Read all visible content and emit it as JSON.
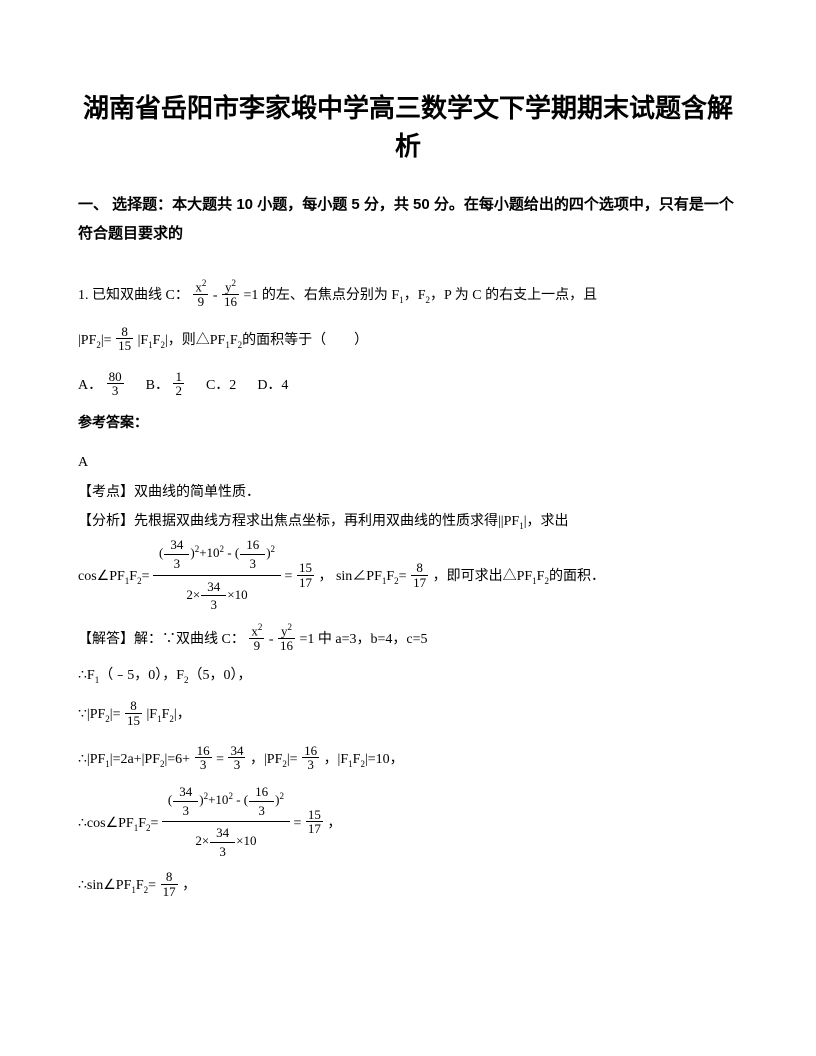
{
  "title": "湖南省岳阳市李家塅中学高三数学文下学期期末试题含解析",
  "section_header": "一、 选择题：本大题共 10 小题，每小题 5 分，共 50 分。在每小题给出的四个选项中，只有是一个符合题目要求的",
  "q1": {
    "stem_a": "1. 已知双曲线 C：",
    "hyp_num_l": "x",
    "hyp_den_l": "9",
    "hyp_num_r": "y",
    "hyp_den_r": "16",
    "stem_b": "=1 的左、右焦点分别为 F",
    "stem_c": "，F",
    "stem_d": "，P 为 C 的右支上一点，且",
    "pf2_eq_a": "|PF",
    "pf2_eq_b": "|=",
    "f815_n": "8",
    "f815_d": "15",
    "pf2_eq_c": "|F",
    "pf2_eq_d": "F",
    "pf2_eq_e": "|，则△PF",
    "pf2_eq_f": "F",
    "pf2_eq_g": "的面积等于（　　）",
    "optA_pre": "A．",
    "optA_n": "80",
    "optA_d": "3",
    "optB_pre": "B．",
    "optB_n": "1",
    "optB_d": "2",
    "optC": "C．2",
    "optD": "D．4",
    "ans_label": "参考答案：",
    "ans": "A",
    "kaodian": "【考点】双曲线的简单性质．",
    "fenxi_a": "【分析】先根据双曲线方程求出焦点坐标，再利用双曲线的性质求得||PF",
    "fenxi_b": "|，求出",
    "cos_pre": "cos∠PF",
    "cos_mid": "F",
    "cos_post": "=",
    "big_num_a": "(",
    "f34_3_n": "34",
    "f34_3_d": "3",
    "big_num_b": ")",
    "big_num_c": "+10",
    "big_num_d": " - (",
    "f16_3_n": "16",
    "f16_3_d": "3",
    "big_num_e": ")",
    "big_den_a": "2×",
    "big_den_b": "×10",
    "eq_str": "=",
    "f1517_n": "15",
    "f1517_d": "17",
    "comma": "，",
    "sin_pre": "sin∠PF",
    "sin_mid": "F",
    "sin_post": "=",
    "f817_n": "8",
    "f817_d": "17",
    "fenxi_end": "，即可求出△PF",
    "fenxi_end2": "F",
    "fenxi_end3": "的面积．",
    "jieda_a": "【解答】解：∵双曲线 C：",
    "jieda_b": "=1 中 a=3，b=4，c=5",
    "line_f": "∴F",
    "line_f_a": "（﹣5，0），F",
    "line_f_b": "（5，0），",
    "because": "∵|PF",
    "because_b": "|=",
    "because_c": "|F",
    "because_d": "F",
    "because_e": "|，",
    "therefore1_a": "∴|PF",
    "therefore1_b": "|=2a+|PF",
    "therefore1_c": "|=6+",
    "therefore1_d": "=",
    "therefore1_e": "，|PF",
    "therefore1_f": "|=",
    "therefore1_g": "，|F",
    "therefore1_h": "F",
    "therefore1_i": "|=10，",
    "therefore_cos": "∴cos∠PF",
    "therefore_cos_b": "F",
    "therefore_cos_c": "=",
    "therefore_sin": "∴sin∠PF",
    "therefore_sin_b": "F",
    "therefore_sin_c": "=",
    "s1": "1",
    "s2": "2",
    "sq": "2"
  }
}
